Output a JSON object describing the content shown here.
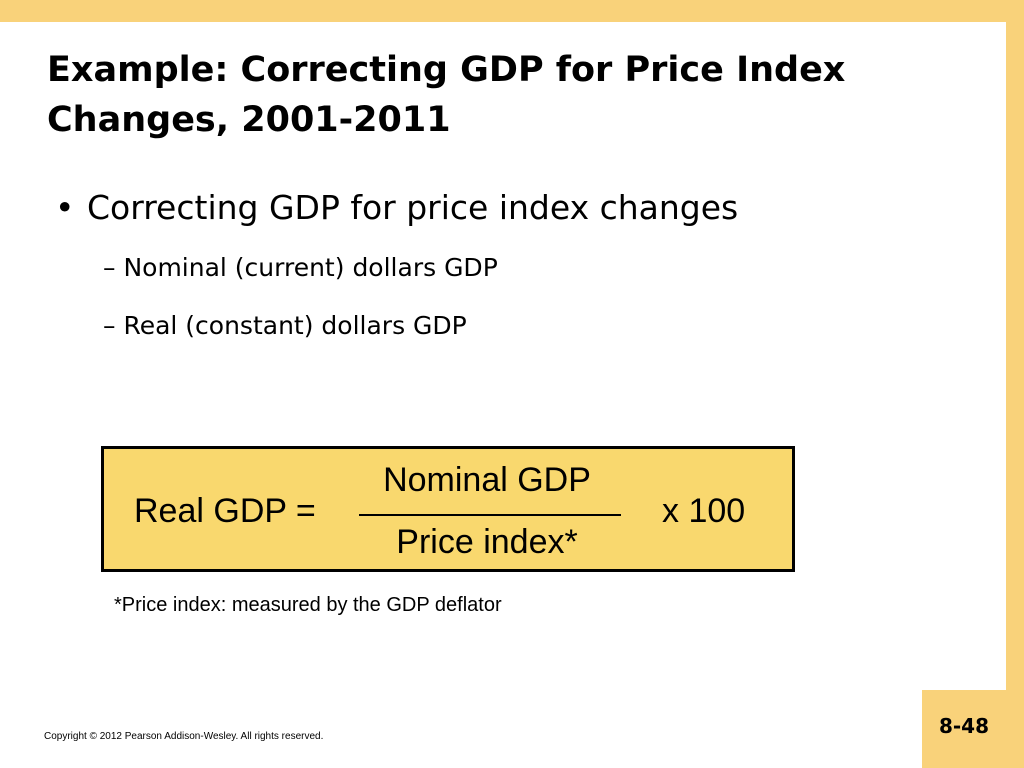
{
  "slide": {
    "title_line1": "Example: Correcting GDP for Price Index",
    "title_line2": "Changes, 2001-2011",
    "bullet": "Correcting GDP for price index changes",
    "sub_bullets": [
      "– Nominal (current) dollars GDP",
      "– Real (constant) dollars GDP"
    ],
    "formula": {
      "lhs": "Real GDP =",
      "numerator": "Nominal GDP",
      "denominator": "Price index*",
      "multiplier": "x 100"
    },
    "footnote": "*Price index: measured by the GDP deflator",
    "copyright": "Copyright © 2012 Pearson Addison-Wesley. All rights reserved.",
    "page_number": "8-48"
  },
  "colors": {
    "accent_band": "#f9d27a",
    "formula_fill": "#f9d86e"
  }
}
